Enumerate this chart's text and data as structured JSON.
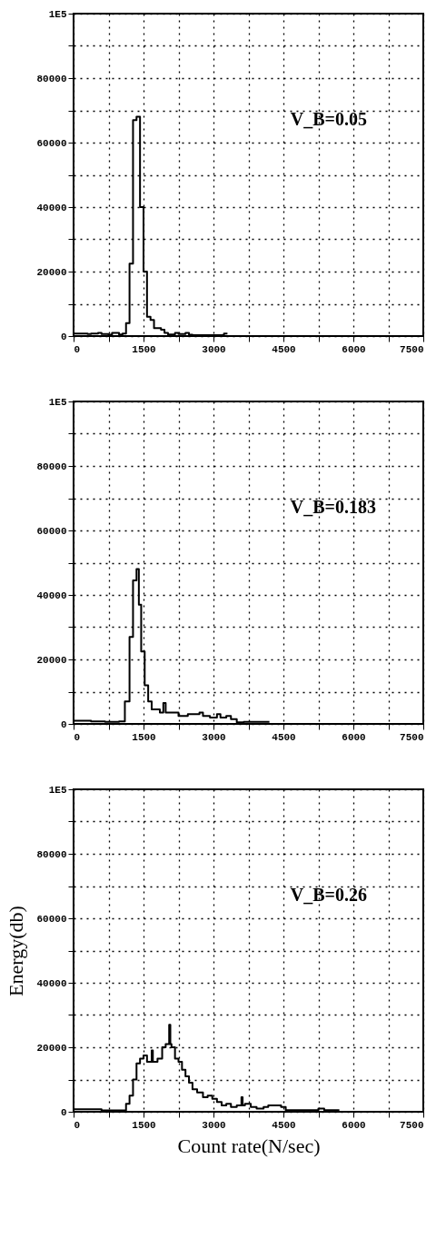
{
  "chart_data": [
    {
      "type": "step",
      "annotations": [
        "V_B=0.05"
      ],
      "grid": true,
      "xlim": [
        0,
        7500
      ],
      "ylim": [
        0,
        100000
      ],
      "xticks": [
        0,
        {
          "value": 750,
          "label": null
        },
        1500,
        {
          "value": 2250,
          "label": null
        },
        3000,
        {
          "value": 3750,
          "label": null
        },
        4500,
        {
          "value": 5250,
          "label": null
        },
        6000,
        {
          "value": 6750,
          "label": null
        },
        7500
      ],
      "yticks": [
        0,
        {
          "value": 10000,
          "label": null
        },
        20000,
        {
          "value": 30000,
          "label": null
        },
        40000,
        {
          "value": 50000,
          "label": null
        },
        60000,
        {
          "value": 70000,
          "label": null
        },
        80000,
        {
          "value": 90000,
          "label": null
        },
        {
          "value": 100000,
          "label": "1E5"
        }
      ],
      "series": [
        {
          "color": "#000000",
          "x": [
            0,
            300,
            375,
            525,
            600,
            750,
            825,
            975,
            1050,
            1125,
            1200,
            1275,
            1350,
            1425,
            1500,
            1575,
            1650,
            1725,
            1875,
            1950,
            2025,
            2175,
            2250,
            2400,
            2475,
            2550,
            3225,
            3300
          ],
          "values": [
            800,
            600,
            800,
            1000,
            600,
            400,
            1000,
            500,
            800,
            4000,
            22500,
            67000,
            68000,
            40000,
            20000,
            6000,
            5000,
            2500,
            2000,
            1000,
            500,
            1000,
            600,
            1000,
            400,
            300,
            800,
            800
          ]
        }
      ]
    },
    {
      "type": "step",
      "annotations": [
        "V_B=0.183"
      ],
      "grid": true,
      "xlim": [
        0,
        7500
      ],
      "ylim": [
        0,
        100000
      ],
      "xticks": [
        0,
        {
          "value": 750,
          "label": null
        },
        1500,
        {
          "value": 2250,
          "label": null
        },
        3000,
        {
          "value": 3750,
          "label": null
        },
        4500,
        {
          "value": 5250,
          "label": null
        },
        6000,
        {
          "value": 6750,
          "label": null
        },
        7500
      ],
      "yticks": [
        0,
        {
          "value": 10000,
          "label": null
        },
        20000,
        {
          "value": 30000,
          "label": null
        },
        40000,
        {
          "value": 50000,
          "label": null
        },
        60000,
        {
          "value": 70000,
          "label": null
        },
        80000,
        {
          "value": 90000,
          "label": null
        },
        {
          "value": 100000,
          "label": "1E5"
        }
      ],
      "series": [
        {
          "color": "#000000",
          "x": [
            0,
            375,
            675,
            975,
            1100,
            1200,
            1275,
            1350,
            1400,
            1450,
            1525,
            1600,
            1675,
            1850,
            1925,
            1975,
            2250,
            2325,
            2450,
            2700,
            2775,
            2925,
            3075,
            3150,
            3275,
            3375,
            3500,
            3650,
            4200
          ],
          "values": [
            1000,
            800,
            600,
            800,
            7000,
            27000,
            44500,
            48000,
            37000,
            22500,
            12000,
            7000,
            4500,
            3500,
            6500,
            3500,
            2500,
            2500,
            3000,
            3500,
            2500,
            2000,
            3000,
            2000,
            2500,
            1500,
            500,
            600,
            600
          ]
        }
      ]
    },
    {
      "type": "step",
      "xlabel": "Count rate(N/sec)",
      "ylabel": "Energy(db)",
      "annotations": [
        "V_B=0.26"
      ],
      "grid": true,
      "xlim": [
        0,
        7500
      ],
      "ylim": [
        0,
        100000
      ],
      "xticks": [
        0,
        {
          "value": 750,
          "label": null
        },
        1500,
        {
          "value": 2250,
          "label": null
        },
        3000,
        {
          "value": 3750,
          "label": null
        },
        4500,
        {
          "value": 5250,
          "label": null
        },
        6000,
        {
          "value": 6750,
          "label": null
        },
        7500
      ],
      "yticks": [
        0,
        {
          "value": 10000,
          "label": null
        },
        20000,
        {
          "value": 30000,
          "label": null
        },
        40000,
        {
          "value": 50000,
          "label": null
        },
        60000,
        {
          "value": 70000,
          "label": null
        },
        80000,
        {
          "value": 90000,
          "label": null
        },
        {
          "value": 100000,
          "label": "1E5"
        }
      ],
      "series": [
        {
          "color": "#000000",
          "x": [
            0,
            600,
            1125,
            1200,
            1275,
            1350,
            1425,
            1500,
            1575,
            1675,
            1700,
            1800,
            1900,
            1975,
            2050,
            2075,
            2100,
            2175,
            2250,
            2325,
            2400,
            2475,
            2550,
            2650,
            2775,
            2875,
            2975,
            3075,
            3175,
            3275,
            3375,
            3500,
            3600,
            3625,
            3675,
            3800,
            3925,
            4075,
            4175,
            4350,
            4450,
            4550,
            5025,
            5250,
            5375,
            5700
          ],
          "values": [
            800,
            400,
            2500,
            5000,
            10000,
            15000,
            16500,
            17500,
            15500,
            19000,
            15500,
            16500,
            20000,
            21000,
            27000,
            21000,
            20000,
            16500,
            15500,
            13000,
            11000,
            9000,
            7000,
            6000,
            4500,
            5000,
            4000,
            3000,
            2000,
            2500,
            1500,
            2000,
            4500,
            2000,
            2500,
            1500,
            1000,
            1500,
            2000,
            2000,
            1500,
            500,
            500,
            1000,
            500,
            500
          ]
        }
      ]
    }
  ]
}
